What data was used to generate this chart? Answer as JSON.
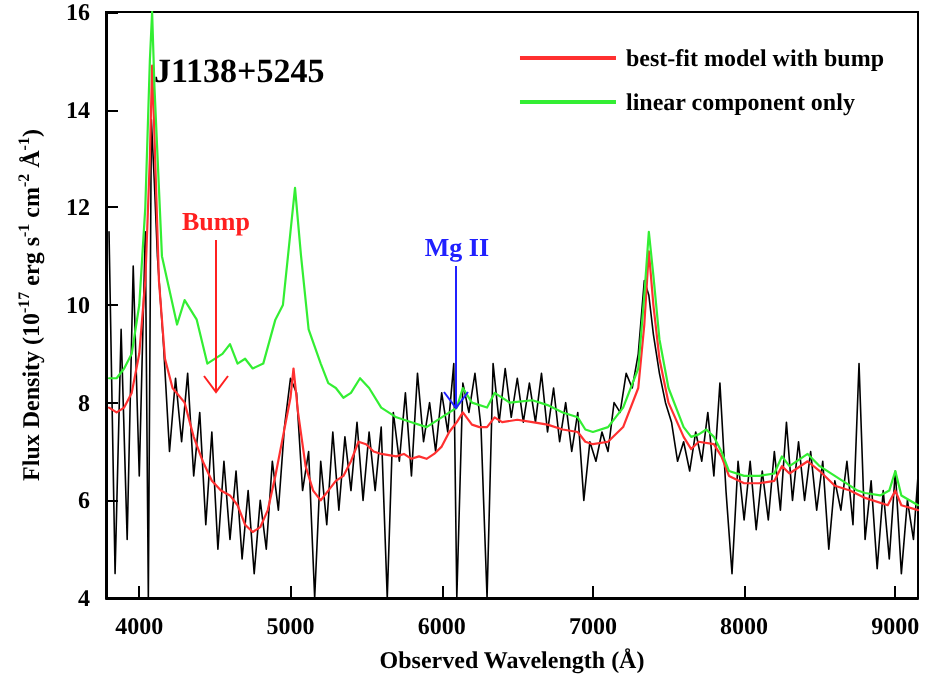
{
  "chart_data": {
    "type": "line",
    "title": "J1138+5245",
    "xlabel": "Observed Wavelength (Å)",
    "ylabel": "Flux Density (10$^{-17}$ erg s$^{-1}$ cm$^{-2}$ Å$^{-1}$)",
    "xlim": [
      3780,
      9150
    ],
    "xticks": [
      4000,
      5000,
      6000,
      7000,
      8000,
      9000
    ],
    "ylim": [
      4,
      16
    ],
    "yticks": [
      4,
      6,
      8,
      10,
      12,
      14,
      16
    ],
    "grid": false,
    "legend": "top right",
    "marker": "none",
    "line_style": "solid",
    "annotations": [
      "Bump",
      {
        "text": "Mg II",
        "x": 6100,
        "y": 7.9
      }
    ],
    "series": [
      {
        "color": "#000000",
        "x": [
          3800,
          3840,
          3880,
          3920,
          3960,
          4000,
          4040,
          4060,
          4080,
          4100,
          4120,
          4160,
          4200,
          4240,
          4280,
          4320,
          4360,
          4400,
          4440,
          4480,
          4520,
          4560,
          4600,
          4640,
          4680,
          4720,
          4760,
          4800,
          4840,
          4880,
          4920,
          4960,
          5000,
          5040,
          5080,
          5120,
          5160,
          5200,
          5240,
          5280,
          5320,
          5360,
          5400,
          5440,
          5480,
          5520,
          5560,
          5600,
          5640,
          5680,
          5720,
          5760,
          5800,
          5840,
          5880,
          5920,
          5960,
          6000,
          6040,
          6080,
          6100,
          6140,
          6180,
          6220,
          6260,
          6300,
          6340,
          6380,
          6420,
          6460,
          6500,
          6540,
          6580,
          6620,
          6660,
          6700,
          6740,
          6780,
          6820,
          6860,
          6900,
          6940,
          6980,
          7020,
          7060,
          7100,
          7140,
          7180,
          7220,
          7260,
          7300,
          7340,
          7370,
          7400,
          7440,
          7480,
          7520,
          7560,
          7600,
          7640,
          7680,
          7720,
          7760,
          7800,
          7840,
          7880,
          7920,
          7960,
          8000,
          8040,
          8080,
          8120,
          8160,
          8200,
          8240,
          8280,
          8320,
          8360,
          8400,
          8440,
          8480,
          8520,
          8560,
          8600,
          8640,
          8680,
          8720,
          8760,
          8800,
          8840,
          8880,
          8920,
          8960,
          9000,
          9040,
          9080,
          9120,
          9150
        ],
        "values": [
          11.5,
          4.5,
          9.5,
          5.2,
          10.8,
          6.5,
          11.5,
          4.0,
          13.8,
          12.5,
          11.0,
          9.2,
          7.0,
          8.5,
          7.2,
          8.6,
          6.5,
          7.8,
          5.5,
          7.4,
          5.0,
          6.8,
          5.2,
          6.6,
          4.8,
          6.2,
          4.5,
          6.0,
          5.0,
          6.8,
          5.8,
          7.5,
          8.5,
          8.2,
          6.2,
          7.0,
          4.0,
          6.8,
          5.5,
          7.4,
          5.8,
          7.3,
          6.2,
          7.6,
          6.0,
          7.4,
          6.2,
          7.5,
          4.0,
          7.8,
          6.8,
          8.2,
          6.5,
          8.6,
          7.2,
          8.0,
          7.0,
          8.2,
          7.4,
          8.8,
          4.0,
          8.4,
          7.8,
          8.6,
          7.5,
          4.0,
          8.8,
          7.6,
          8.7,
          7.7,
          8.5,
          7.6,
          8.4,
          7.6,
          8.6,
          7.4,
          8.3,
          7.2,
          8.0,
          7.0,
          7.8,
          6.0,
          7.2,
          6.8,
          7.4,
          7.0,
          8.0,
          7.8,
          8.6,
          8.3,
          9.0,
          10.5,
          10.2,
          9.4,
          8.6,
          8.0,
          7.6,
          6.8,
          7.2,
          6.6,
          7.4,
          6.8,
          7.8,
          6.5,
          8.4,
          6.2,
          4.5,
          6.8,
          5.6,
          6.8,
          5.4,
          6.6,
          5.6,
          7.0,
          5.8,
          7.6,
          6.0,
          7.2,
          6.0,
          7.0,
          5.8,
          6.8,
          5.0,
          6.4,
          5.8,
          6.8,
          5.5,
          8.8,
          5.2,
          6.4,
          4.6,
          6.2,
          4.8,
          6.6,
          4.5,
          6.0,
          5.2,
          6.5
        ]
      },
      {
        "name": "best-fit model with bump",
        "color": "#ff3030",
        "x": [
          3800,
          3850,
          3900,
          3950,
          4000,
          4040,
          4070,
          4085,
          4100,
          4130,
          4170,
          4220,
          4300,
          4360,
          4420,
          4480,
          4540,
          4600,
          4650,
          4700,
          4750,
          4800,
          4850,
          4900,
          4950,
          5000,
          5020,
          5050,
          5100,
          5150,
          5200,
          5250,
          5300,
          5350,
          5400,
          5450,
          5500,
          5550,
          5600,
          5700,
          5750,
          5800,
          5850,
          5900,
          5950,
          6000,
          6050,
          6100,
          6140,
          6200,
          6250,
          6300,
          6350,
          6400,
          6500,
          6600,
          6700,
          6800,
          6900,
          6950,
          7000,
          7100,
          7200,
          7300,
          7340,
          7370,
          7400,
          7440,
          7500,
          7600,
          7650,
          7700,
          7800,
          7850,
          7900,
          8000,
          8100,
          8200,
          8250,
          8300,
          8420,
          8500,
          8600,
          8700,
          8800,
          8950,
          9000,
          9040,
          9150
        ],
        "values": [
          7.9,
          7.8,
          7.9,
          8.2,
          9.0,
          10.5,
          13.0,
          14.9,
          13.5,
          10.5,
          8.9,
          8.3,
          8.0,
          7.3,
          6.8,
          6.4,
          6.2,
          6.1,
          5.9,
          5.5,
          5.35,
          5.45,
          5.8,
          6.5,
          7.3,
          8.1,
          8.7,
          7.8,
          6.7,
          6.2,
          6.0,
          6.2,
          6.4,
          6.5,
          6.8,
          7.2,
          7.15,
          7.0,
          6.95,
          6.9,
          6.95,
          6.85,
          6.9,
          6.85,
          6.95,
          7.1,
          7.4,
          7.6,
          7.8,
          7.55,
          7.5,
          7.5,
          7.7,
          7.6,
          7.65,
          7.6,
          7.55,
          7.45,
          7.4,
          7.2,
          7.15,
          7.2,
          7.5,
          8.3,
          9.6,
          11.1,
          10.0,
          8.9,
          8.0,
          7.3,
          7.05,
          7.2,
          7.15,
          6.9,
          6.5,
          6.35,
          6.35,
          6.4,
          6.7,
          6.55,
          6.8,
          6.6,
          6.3,
          6.2,
          6.05,
          5.9,
          6.2,
          5.9,
          5.8
        ]
      },
      {
        "name": "linear component only",
        "color": "#33ee33",
        "x": [
          3800,
          3850,
          3900,
          3950,
          4000,
          4040,
          4070,
          4085,
          4100,
          4150,
          4250,
          4300,
          4380,
          4450,
          4550,
          4600,
          4650,
          4700,
          4750,
          4820,
          4900,
          4950,
          5000,
          5030,
          5070,
          5120,
          5200,
          5250,
          5300,
          5350,
          5400,
          5460,
          5520,
          5600,
          5700,
          5800,
          5900,
          6000,
          6100,
          6140,
          6200,
          6300,
          6350,
          6450,
          6600,
          6700,
          6800,
          6900,
          6950,
          7000,
          7100,
          7200,
          7300,
          7340,
          7370,
          7400,
          7440,
          7500,
          7600,
          7650,
          7700,
          7750,
          7800,
          7850,
          7900,
          8000,
          8100,
          8200,
          8250,
          8300,
          8420,
          8500,
          8600,
          8700,
          8750,
          8800,
          8900,
          8960,
          9000,
          9040,
          9150
        ],
        "values": [
          8.5,
          8.5,
          8.7,
          9.0,
          10.0,
          12.0,
          15.0,
          16.0,
          14.5,
          11.0,
          9.6,
          10.1,
          9.7,
          8.8,
          9.0,
          9.2,
          8.8,
          8.9,
          8.7,
          8.8,
          9.7,
          10.0,
          11.5,
          12.4,
          11.0,
          9.5,
          8.8,
          8.4,
          8.3,
          8.1,
          8.2,
          8.5,
          8.3,
          7.9,
          7.7,
          7.6,
          7.5,
          7.7,
          7.9,
          8.3,
          8.0,
          7.9,
          8.2,
          8.0,
          8.05,
          7.95,
          7.8,
          7.7,
          7.45,
          7.4,
          7.5,
          7.9,
          8.7,
          10.2,
          11.5,
          10.6,
          9.3,
          8.3,
          7.5,
          7.3,
          7.35,
          7.45,
          7.3,
          7.0,
          6.6,
          6.5,
          6.5,
          6.55,
          6.9,
          6.7,
          6.95,
          6.7,
          6.5,
          6.3,
          6.2,
          6.15,
          6.1,
          6.2,
          6.6,
          6.1,
          5.9
        ]
      }
    ]
  }
}
